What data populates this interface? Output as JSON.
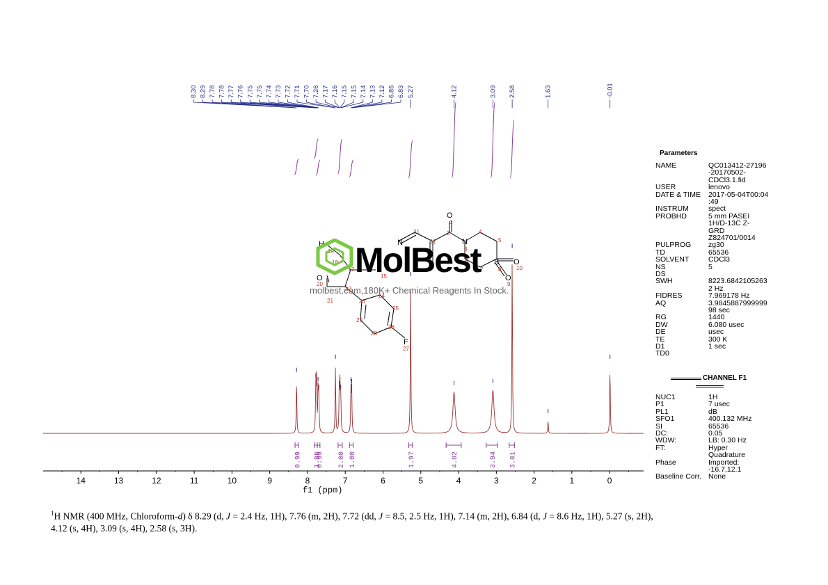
{
  "chart_data": {
    "type": "line",
    "xlabel": "f1 (ppm)",
    "xlim": [
      15,
      -0.9
    ],
    "x_ticks": [
      "14",
      "13",
      "12",
      "11",
      "10",
      "9",
      "8",
      "7",
      "6",
      "5",
      "4",
      "3",
      "2",
      "1",
      "0"
    ],
    "reversed_x": true,
    "peaks": [
      {
        "ppm": 8.29,
        "height": 0.29
      },
      {
        "ppm": 7.78,
        "height": 0.26
      },
      {
        "ppm": 7.76,
        "height": 0.27
      },
      {
        "ppm": 7.72,
        "height": 0.24
      },
      {
        "ppm": 7.7,
        "height": 0.2
      },
      {
        "ppm": 7.26,
        "height": 0.36
      },
      {
        "ppm": 7.16,
        "height": 0.22
      },
      {
        "ppm": 7.14,
        "height": 0.25
      },
      {
        "ppm": 7.12,
        "height": 0.2
      },
      {
        "ppm": 6.85,
        "height": 0.24
      },
      {
        "ppm": 6.83,
        "height": 0.23
      },
      {
        "ppm": 5.27,
        "height": 0.8
      },
      {
        "ppm": 4.12,
        "height": 0.22
      },
      {
        "ppm": 3.09,
        "height": 0.23
      },
      {
        "ppm": 2.58,
        "height": 0.95
      },
      {
        "ppm": 1.63,
        "height": 0.07
      },
      {
        "ppm": -0.01,
        "height": 0.36
      }
    ],
    "peak_labels": [
      "8.30",
      "8.29",
      "7.78",
      "7.78",
      "7.77",
      "7.76",
      "7.75",
      "7.75",
      "7.74",
      "7.73",
      "7.72",
      "7.71",
      "7.70",
      "7.26",
      "7.17",
      "7.16",
      "7.15",
      "7.15",
      "7.14",
      "7.13",
      "7.12",
      "6.85",
      "6.83",
      "5.27",
      "4.12",
      "3.09",
      "2.58",
      "1.63",
      "-0.01"
    ],
    "integrals": [
      {
        "from": 8.33,
        "to": 8.24,
        "value": "0.99"
      },
      {
        "from": 7.82,
        "to": 7.74,
        "value": "1.96"
      },
      {
        "from": 7.74,
        "to": 7.67,
        "value": "0.99"
      },
      {
        "from": 7.19,
        "to": 7.08,
        "value": "2.00"
      },
      {
        "from": 6.89,
        "to": 6.79,
        "value": "1.00"
      },
      {
        "from": 5.32,
        "to": 5.22,
        "value": "1.97"
      },
      {
        "from": 4.33,
        "to": 3.93,
        "value": "4.02"
      },
      {
        "from": 3.27,
        "to": 2.97,
        "value": "3.94"
      },
      {
        "from": 2.66,
        "to": 2.52,
        "value": "3.01"
      }
    ],
    "colors": {
      "spectrum": "#9b3030",
      "peak_label": "#1f2a8a",
      "integral": "#8a3a9a"
    }
  },
  "parameters": {
    "title": "Parameters",
    "rows": [
      {
        "k": "NAME",
        "v": "QC013412-27196\n-20170502-\nCDCl3.1.fid"
      },
      {
        "k": "USER",
        "v": "lenovo"
      },
      {
        "k": "DATE & TIME",
        "v": "2017-05-04T00:04\n:49"
      },
      {
        "k": "INSTRUM",
        "v": "spect"
      },
      {
        "k": "PROBHD",
        "v": "5 mm PASEI\n1H/D-13C Z-\nGRD\nZ824701/0014"
      },
      {
        "k": "PULPROG",
        "v": "zg30"
      },
      {
        "k": "TD",
        "v": "65536"
      },
      {
        "k": "SOLVENT",
        "v": "CDCl3"
      },
      {
        "k": "NS",
        "v": "5"
      },
      {
        "k": "DS",
        "v": ""
      },
      {
        "k": "SWH",
        "v": "8223.6842105263\n2 Hz"
      },
      {
        "k": "FIDRES",
        "v": "7.969178 Hz"
      },
      {
        "k": "AQ",
        "v": "3.9845887999999\n98 sec"
      },
      {
        "k": "RG",
        "v": "1440"
      },
      {
        "k": "DW",
        "v": "6.080 usec"
      },
      {
        "k": "DE",
        "v": "usec"
      },
      {
        "k": "TE",
        "v": "300 K"
      },
      {
        "k": "D1",
        "v": "1 sec"
      },
      {
        "k": "TD0",
        "v": ""
      }
    ],
    "channel_title": "CHANNEL F1",
    "channel_rows": [
      {
        "k": "NUC1",
        "v": "1H"
      },
      {
        "k": "P1",
        "v": "7 usec"
      },
      {
        "k": "PL1",
        "v": "dB"
      },
      {
        "k": "SFO1",
        "v": "400.132 MHz"
      },
      {
        "k": "SI",
        "v": "65536"
      },
      {
        "k": "DC:",
        "v": "0.05"
      },
      {
        "k": "WDW:",
        "v": "LB: 0.30 Hz"
      },
      {
        "k": "FT:",
        "v": "Hyper\nQuadrature"
      },
      {
        "k": "Phase",
        "v": "Imported:\n-16.7,12.1"
      },
      {
        "k": "Baseline Corr.",
        "v": "None"
      }
    ]
  },
  "structure": {
    "atoms": [
      "O",
      "1",
      "2",
      "11",
      "31",
      "N",
      "4",
      "5",
      "3",
      "6",
      "7",
      "S",
      "8",
      "O",
      "10",
      "O",
      "9",
      "H",
      "19",
      "3",
      "18",
      "17",
      "15",
      "22",
      "O",
      "20",
      "21",
      "23",
      "24",
      "25",
      "29",
      "26",
      "28",
      "F",
      "27"
    ]
  },
  "watermark": {
    "logo": "MolBest",
    "text": "molbest.com,180K+ Chemical Reagents In Stock."
  },
  "caption": {
    "nucleus_sup": "1",
    "text_a": "H NMR (400 MHz, Chloroform-",
    "text_d": "d",
    "text_b": ") δ 8.29 (d, ",
    "J": "J",
    "text_c": " = 2.4 Hz, 1H), 7.76 (m, 2H), 7.72 (dd, ",
    "text_e": " = 8.5, 2.5 Hz, 1H), 7.14 (m, 2H), 6.84 (d, ",
    "text_f": " = 8.6 Hz, 1H), 5.27 (s, 2H), 4.12 (s, 4H), 3.09 (s, 4H), 2.58 (s, 3H)."
  }
}
